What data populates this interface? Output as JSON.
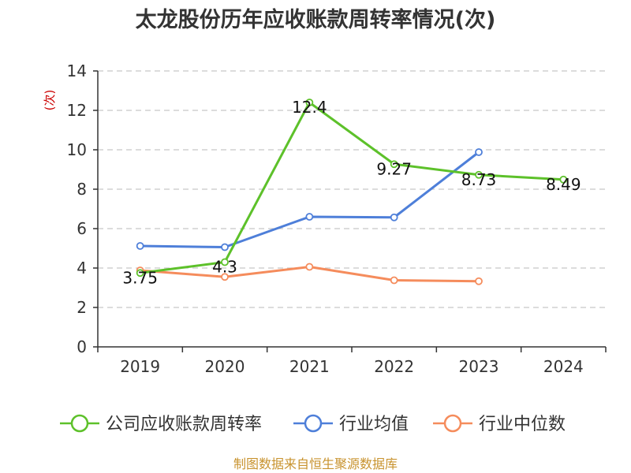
{
  "chart_data": {
    "type": "line",
    "title": "太龙股份历年应收账款周转率情况(次)",
    "ylabel": "(次)",
    "xlabel": "",
    "categories": [
      "2019",
      "2020",
      "2021",
      "2022",
      "2023",
      "2024"
    ],
    "ylim": [
      0,
      14
    ],
    "yticks": [
      0,
      2,
      4,
      6,
      8,
      10,
      12,
      14
    ],
    "grid": true,
    "legend_position": "bottom",
    "series": [
      {
        "name": "公司应收账款周转率",
        "color": "#5dc12a",
        "values": [
          3.75,
          4.3,
          12.4,
          9.27,
          8.73,
          8.49
        ],
        "labels": [
          "3.75",
          "4.3",
          "12.4",
          "9.27",
          "8.73",
          "8.49"
        ]
      },
      {
        "name": "行业均值",
        "color": "#4e7fd9",
        "values": [
          5.12,
          5.06,
          6.6,
          6.57,
          9.88,
          null
        ]
      },
      {
        "name": "行业中位数",
        "color": "#f58c5c",
        "values": [
          3.88,
          3.55,
          4.06,
          3.38,
          3.33,
          null
        ]
      }
    ]
  },
  "source_text": "制图数据来自恒生聚源数据库"
}
